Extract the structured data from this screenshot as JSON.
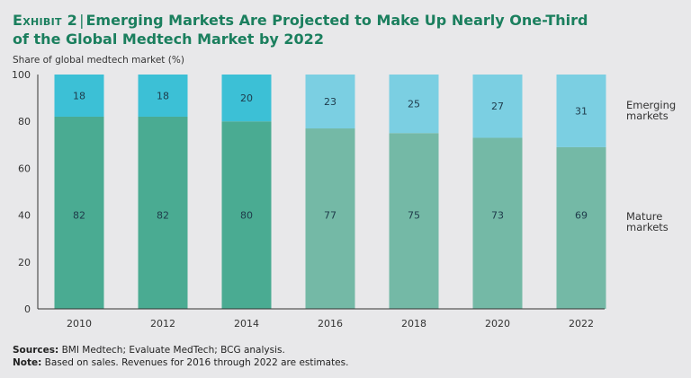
{
  "header": {
    "exhibit": "Exhibit 2",
    "separator": "|",
    "title_line1": "Emerging Markets Are Projected to Make Up Nearly One-Third",
    "title_line2": "of the Global Medtech Market by 2022"
  },
  "footer": {
    "sources_label": "Sources:",
    "sources_text": " BMI Medtech; Evaluate MedTech; BCG analysis.",
    "note_label": "Note:",
    "note_text": " Based on sales. Revenues for 2016 through 2022 are estimates."
  },
  "chart_data": {
    "type": "bar",
    "stacked": true,
    "title": "Emerging Markets Are Projected to Make Up Nearly One-Third of the Global Medtech Market by 2022",
    "ylabel": "Share of global medtech market (%)",
    "xlabel": "",
    "ylim": [
      0,
      100
    ],
    "yticks": [
      0,
      20,
      40,
      60,
      80,
      100
    ],
    "categories": [
      "2010",
      "2012",
      "2014",
      "2016",
      "2018",
      "2020",
      "2022"
    ],
    "estimate_from_index": 3,
    "series": [
      {
        "name": "Mature markets",
        "values": [
          82,
          82,
          80,
          77,
          75,
          73,
          69
        ],
        "color": "#4aab92",
        "estimate_color": "#74b9a6"
      },
      {
        "name": "Emerging markets",
        "values": [
          18,
          18,
          20,
          23,
          25,
          27,
          31
        ],
        "color": "#3cc0d6",
        "estimate_color": "#7bcfe2"
      }
    ],
    "legend": {
      "placement": "right",
      "entries": [
        "Emerging markets",
        "Mature markets"
      ]
    },
    "grid": false
  }
}
